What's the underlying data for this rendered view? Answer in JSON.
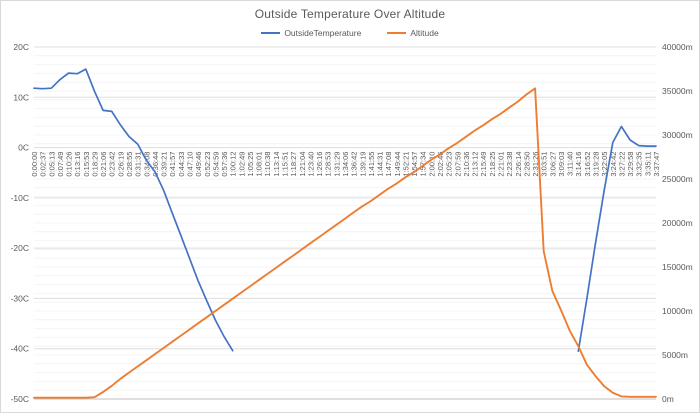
{
  "title": "Outside Temperature Over Altitude",
  "legend": {
    "items": [
      {
        "label": "OutsideTemperature",
        "color": "#4472c4"
      },
      {
        "label": "Altitude",
        "color": "#ed7d31"
      }
    ]
  },
  "colors": {
    "background": "#ffffff",
    "border": "#d9d9d9",
    "text": "#595959",
    "minor_gridline": "#f4f4f4",
    "major_gridline": "#dddddd",
    "axis_line": "#bfbfbf",
    "temperature_series": "#4472c4",
    "altitude_series": "#ed7d31"
  },
  "chart_data": {
    "type": "line",
    "title": "Outside Temperature Over Altitude",
    "legend_position": "top",
    "grid": "minor-horizontal-1000m, major-horizontal-10C",
    "x_axis_crosses_at": "0C",
    "x_label_rotation_deg": -90,
    "categories": [
      "0:00:00",
      "0:02:37",
      "0:05:13",
      "0:07:49",
      "0:10:26",
      "0:13:16",
      "0:15:53",
      "0:18:29",
      "0:21:06",
      "0:23:42",
      "0:26:19",
      "0:28:55",
      "0:31:31",
      "0:34:08",
      "0:36:44",
      "0:39:21",
      "0:41:57",
      "0:44:33",
      "0:47:10",
      "0:49:46",
      "0:52:23",
      "0:54:59",
      "0:57:36",
      "1:00:12",
      "1:02:49",
      "1:05:25",
      "1:08:01",
      "1:10:38",
      "1:13:14",
      "1:15:51",
      "1:18:27",
      "1:21:04",
      "1:23:40",
      "1:26:16",
      "1:28:53",
      "1:31:29",
      "1:34:06",
      "1:36:42",
      "1:39:19",
      "1:41:55",
      "1:44:31",
      "1:47:08",
      "1:49:44",
      "1:52:21",
      "1:54:57",
      "1:57:34",
      "2:00:10",
      "2:02:46",
      "2:05:23",
      "2:07:59",
      "2:10:36",
      "2:13:12",
      "2:15:49",
      "2:18:25",
      "2:21:01",
      "2:23:38",
      "2:26:14",
      "2:28:50",
      "2:31:26",
      "3:03:51",
      "3:06:27",
      "3:09:03",
      "3:11:40",
      "3:14:16",
      "3:16:52",
      "3:19:28",
      "3:22:05",
      "3:24:42",
      "3:27:22",
      "3:29:58",
      "3:32:35",
      "3:35:11",
      "3:37:47"
    ],
    "series": [
      {
        "name": "OutsideTemperature",
        "axis": "left",
        "unit": "C",
        "color": "#4472c4",
        "values": [
          11.8,
          11.7,
          11.8,
          13.5,
          14.8,
          14.7,
          15.6,
          11.2,
          7.4,
          7.2,
          4.5,
          2.2,
          0.7,
          -2.5,
          -4.8,
          -8.5,
          -13,
          -17.5,
          -22,
          -26.5,
          -30.5,
          -34.3,
          -37.6,
          -40.4,
          null,
          null,
          null,
          null,
          null,
          null,
          null,
          null,
          null,
          null,
          null,
          null,
          null,
          null,
          null,
          null,
          null,
          null,
          null,
          null,
          null,
          null,
          null,
          null,
          null,
          null,
          null,
          null,
          null,
          null,
          null,
          null,
          null,
          null,
          null,
          null,
          null,
          null,
          null,
          -40.5,
          -30,
          -19,
          -8.5,
          1.0,
          4.2,
          1.5,
          0.4,
          0.3,
          0.3
        ]
      },
      {
        "name": "Altitude",
        "axis": "right",
        "unit": "m",
        "color": "#ed7d31",
        "values": [
          150,
          150,
          150,
          150,
          150,
          150,
          150,
          200,
          800,
          1500,
          2300,
          3000,
          3700,
          4400,
          5100,
          5800,
          6500,
          7200,
          7900,
          8600,
          9300,
          10000,
          10700,
          11400,
          12100,
          12800,
          13500,
          14200,
          14900,
          15600,
          16300,
          17000,
          17700,
          18400,
          19100,
          19800,
          20500,
          21200,
          21900,
          22500,
          23200,
          23900,
          24500,
          25200,
          25800,
          26500,
          27200,
          27800,
          28500,
          29100,
          29800,
          30500,
          31100,
          31800,
          32400,
          33100,
          33800,
          34600,
          35300,
          16800,
          12300,
          10100,
          7800,
          6000,
          3900,
          2600,
          1450,
          700,
          290,
          250,
          250,
          250,
          250
        ]
      }
    ],
    "left_axis": {
      "title": "",
      "min": -50,
      "max": 20,
      "step": 10,
      "tick_labels": [
        "20C",
        "10C",
        "0C",
        "-10C",
        "-20C",
        "-30C",
        "-40C",
        "-50C"
      ],
      "tick_values": [
        20,
        10,
        0,
        -10,
        -20,
        -30,
        -40,
        -50
      ]
    },
    "right_axis": {
      "title": "",
      "min": 0,
      "max": 40000,
      "step": 5000,
      "tick_labels": [
        "40000m",
        "35000m",
        "30000m",
        "25000m",
        "20000m",
        "15000m",
        "10000m",
        "5000m",
        "0m"
      ],
      "tick_values": [
        40000,
        35000,
        30000,
        25000,
        20000,
        15000,
        10000,
        5000,
        0
      ]
    }
  }
}
